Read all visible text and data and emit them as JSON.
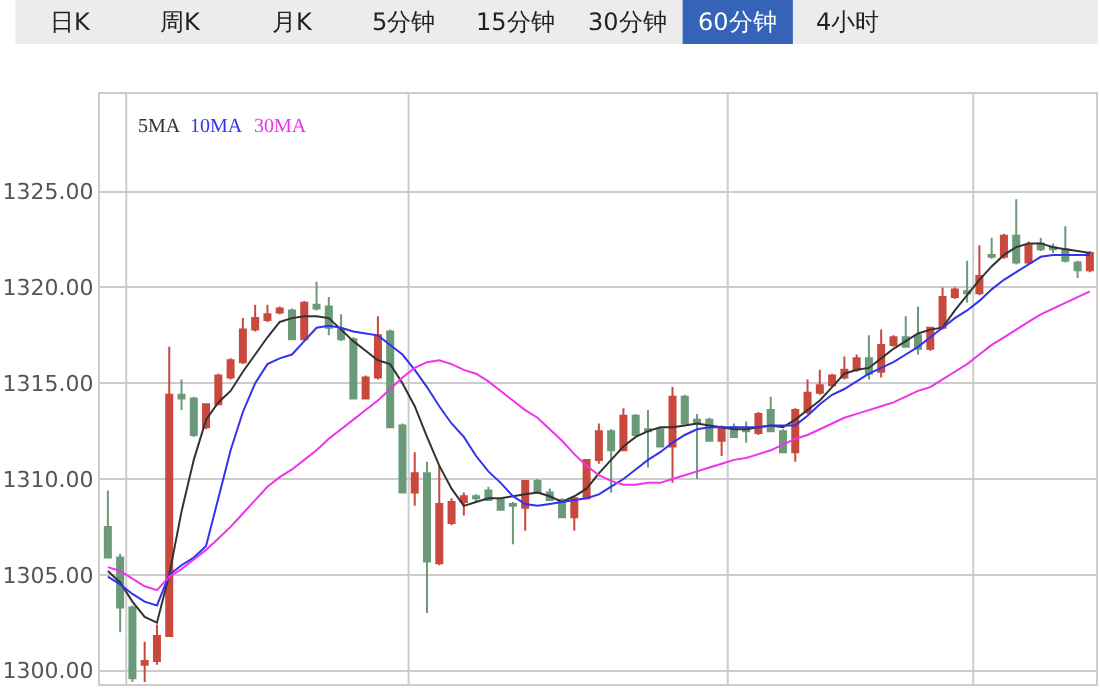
{
  "chart_data": {
    "type": "candlestick",
    "annotations": [
      "日K",
      "周K",
      "月K",
      "5分钟",
      "15分钟",
      "30分钟",
      "60分钟",
      "4小时"
    ],
    "categories": [
      null,
      null,
      null,
      null,
      null,
      null,
      null,
      null,
      null,
      null,
      null,
      null,
      null,
      null,
      null,
      null,
      null,
      null,
      null,
      null,
      null,
      null,
      null,
      null,
      null,
      null,
      null,
      null,
      null,
      null,
      null,
      null,
      null,
      null,
      null,
      null,
      null,
      null,
      null,
      null,
      null,
      null,
      null,
      null,
      null,
      null,
      null,
      null,
      null,
      null,
      null,
      null,
      null,
      null,
      null,
      null,
      null,
      null,
      null,
      null,
      null,
      null,
      null,
      null,
      null,
      null,
      null,
      null,
      null,
      null,
      null,
      null,
      null,
      null,
      null,
      null,
      null,
      null,
      null,
      null,
      null
    ],
    "ohlc": [
      [
        1307.5,
        1309.4,
        1305.9,
        1305.9
      ],
      [
        1305.9,
        1306.1,
        1302.0,
        1303.3
      ],
      [
        1303.3,
        1303.4,
        1299.4,
        1299.6
      ],
      [
        1300.3,
        1301.5,
        1299.4,
        1300.5
      ],
      [
        1300.5,
        1302.4,
        1300.3,
        1301.8
      ],
      [
        1301.8,
        1316.9,
        1301.8,
        1314.4
      ],
      [
        1314.4,
        1315.2,
        1313.6,
        1314.2
      ],
      [
        1314.2,
        1314.3,
        1312.2,
        1312.3
      ],
      [
        1312.7,
        1313.9,
        1312.6,
        1313.9
      ],
      [
        1313.9,
        1315.5,
        1313.9,
        1315.4
      ],
      [
        1315.3,
        1316.3,
        1315.2,
        1316.2
      ],
      [
        1316.1,
        1318.4,
        1316.0,
        1317.8
      ],
      [
        1317.8,
        1319.1,
        1317.7,
        1318.4
      ],
      [
        1318.3,
        1319.1,
        1318.2,
        1318.6
      ],
      [
        1318.7,
        1319.0,
        1318.6,
        1318.9
      ],
      [
        1318.8,
        1318.9,
        1317.3,
        1317.3
      ],
      [
        1317.3,
        1319.3,
        1317.3,
        1319.2
      ],
      [
        1319.1,
        1320.3,
        1318.8,
        1318.9
      ],
      [
        1319.0,
        1319.5,
        1317.5,
        1317.9
      ],
      [
        1317.8,
        1318.6,
        1317.2,
        1317.3
      ],
      [
        1317.3,
        1317.4,
        1314.2,
        1314.2
      ],
      [
        1314.2,
        1315.4,
        1314.2,
        1315.3
      ],
      [
        1315.3,
        1318.5,
        1315.2,
        1317.5
      ],
      [
        1317.7,
        1317.8,
        1312.7,
        1312.7
      ],
      [
        1312.8,
        1312.9,
        1309.3,
        1309.3
      ],
      [
        1309.3,
        1311.4,
        1308.6,
        1310.3
      ],
      [
        1310.3,
        1310.9,
        1303.0,
        1305.7
      ],
      [
        1305.6,
        1310.7,
        1305.5,
        1308.7
      ],
      [
        1307.7,
        1309.0,
        1307.6,
        1308.8
      ],
      [
        1308.8,
        1309.3,
        1308.1,
        1309.1
      ],
      [
        1309.1,
        1309.2,
        1308.8,
        1309.0
      ],
      [
        1309.4,
        1309.6,
        1308.9,
        1308.9
      ],
      [
        1308.9,
        1309.0,
        1308.4,
        1308.4
      ],
      [
        1308.7,
        1308.8,
        1306.6,
        1308.6
      ],
      [
        1308.5,
        1309.9,
        1307.3,
        1309.9
      ],
      [
        1309.9,
        1310.0,
        1309.3,
        1309.3
      ],
      [
        1309.3,
        1309.5,
        1308.9,
        1308.9
      ],
      [
        1308.9,
        1309.0,
        1308.0,
        1308.0
      ],
      [
        1308.0,
        1309.0,
        1307.3,
        1309.0
      ],
      [
        1309.0,
        1311.0,
        1309.0,
        1311.0
      ],
      [
        1311.0,
        1312.9,
        1310.8,
        1312.5
      ],
      [
        1312.5,
        1312.6,
        1309.3,
        1311.5
      ],
      [
        1311.5,
        1313.7,
        1311.5,
        1313.3
      ],
      [
        1313.3,
        1313.4,
        1312.3,
        1312.3
      ],
      [
        1312.6,
        1313.6,
        1310.6,
        1312.5
      ],
      [
        1312.6,
        1312.7,
        1311.7,
        1311.7
      ],
      [
        1311.7,
        1314.8,
        1309.8,
        1314.3
      ],
      [
        1314.3,
        1314.4,
        1312.9,
        1312.9
      ],
      [
        1313.1,
        1313.4,
        1310.0,
        1312.9
      ],
      [
        1313.1,
        1313.2,
        1312.0,
        1312.0
      ],
      [
        1312.0,
        1312.8,
        1311.2,
        1312.7
      ],
      [
        1312.7,
        1312.9,
        1312.2,
        1312.2
      ],
      [
        1312.6,
        1313.0,
        1311.9,
        1312.5
      ],
      [
        1312.4,
        1313.5,
        1312.3,
        1313.4
      ],
      [
        1313.6,
        1314.3,
        1312.5,
        1312.5
      ],
      [
        1312.5,
        1312.6,
        1311.4,
        1311.4
      ],
      [
        1311.4,
        1313.7,
        1310.9,
        1313.6
      ],
      [
        1313.5,
        1315.2,
        1313.4,
        1314.5
      ],
      [
        1314.5,
        1315.7,
        1314.4,
        1314.9
      ],
      [
        1314.9,
        1315.5,
        1314.8,
        1315.4
      ],
      [
        1315.3,
        1316.4,
        1315.2,
        1315.7
      ],
      [
        1315.7,
        1316.5,
        1315.6,
        1316.3
      ],
      [
        1316.3,
        1317.5,
        1315.2,
        1315.5
      ],
      [
        1315.6,
        1317.8,
        1315.3,
        1317.0
      ],
      [
        1317.0,
        1317.5,
        1316.9,
        1317.4
      ],
      [
        1317.4,
        1318.5,
        1316.9,
        1316.9
      ],
      [
        1317.5,
        1319.0,
        1316.5,
        1316.8
      ],
      [
        1316.8,
        1317.9,
        1316.7,
        1317.9
      ],
      [
        1317.9,
        1320.0,
        1317.8,
        1319.5
      ],
      [
        1319.5,
        1320.0,
        1319.4,
        1319.9
      ],
      [
        1319.8,
        1321.4,
        1319.2,
        1319.7
      ],
      [
        1319.7,
        1322.2,
        1319.6,
        1320.6
      ],
      [
        1321.7,
        1322.6,
        1321.5,
        1321.6
      ],
      [
        1321.6,
        1322.8,
        1321.5,
        1322.7
      ],
      [
        1322.7,
        1324.6,
        1321.2,
        1321.3
      ],
      [
        1321.3,
        1322.4,
        1321.2,
        1322.2
      ],
      [
        1322.3,
        1322.6,
        1321.9,
        1322.0
      ],
      [
        1322.1,
        1322.3,
        1321.8,
        1322.0
      ],
      [
        1322.0,
        1323.2,
        1321.3,
        1321.4
      ],
      [
        1321.3,
        1321.4,
        1320.5,
        1320.9
      ],
      [
        1320.9,
        1321.9,
        1320.8,
        1321.8
      ]
    ],
    "series": [
      {
        "name": "5MA",
        "type": "line",
        "color": "#333333",
        "values": [
          1305.2,
          1304.6,
          1303.6,
          1302.8,
          1302.5,
          1305.0,
          1308.3,
          1311.0,
          1313.1,
          1314.0,
          1314.6,
          1315.6,
          1316.5,
          1317.4,
          1318.2,
          1318.4,
          1318.5,
          1318.5,
          1318.4,
          1317.8,
          1317.2,
          1316.7,
          1316.2,
          1316.0,
          1315.0,
          1313.8,
          1312.2,
          1310.7,
          1309.5,
          1308.6,
          1308.8,
          1309.0,
          1309.0,
          1309.1,
          1309.2,
          1309.3,
          1309.1,
          1308.8,
          1309.1,
          1309.5,
          1310.3,
          1311.0,
          1311.7,
          1312.2,
          1312.5,
          1312.7,
          1312.7,
          1312.8,
          1312.9,
          1312.8,
          1312.7,
          1312.6,
          1312.6,
          1312.7,
          1312.8,
          1312.7,
          1313.1,
          1313.6,
          1314.1,
          1314.8,
          1315.5,
          1315.7,
          1315.8,
          1316.3,
          1316.8,
          1317.2,
          1317.6,
          1317.8,
          1317.9,
          1318.8,
          1319.6,
          1320.4,
          1321.1,
          1321.7,
          1322.1,
          1322.3,
          1322.3,
          1322.1,
          1322.0,
          1321.9,
          1321.8
        ]
      },
      {
        "name": "10MA",
        "type": "line",
        "color": "#3333ee",
        "values": [
          1304.9,
          1304.5,
          1304.0,
          1303.6,
          1303.4,
          1305.0,
          1305.5,
          1305.9,
          1306.5,
          1309.0,
          1311.5,
          1313.5,
          1315.0,
          1316.0,
          1316.3,
          1316.5,
          1317.2,
          1317.9,
          1318.0,
          1317.9,
          1317.7,
          1317.6,
          1317.5,
          1317.0,
          1316.5,
          1315.7,
          1314.8,
          1313.8,
          1312.9,
          1312.2,
          1311.2,
          1310.4,
          1309.8,
          1309.1,
          1308.7,
          1308.6,
          1308.7,
          1308.8,
          1308.9,
          1309.0,
          1309.2,
          1309.6,
          1310.0,
          1310.5,
          1311.0,
          1311.4,
          1311.9,
          1312.3,
          1312.6,
          1312.7,
          1312.7,
          1312.7,
          1312.7,
          1312.7,
          1312.8,
          1312.8,
          1312.8,
          1313.3,
          1313.9,
          1314.4,
          1314.7,
          1315.1,
          1315.5,
          1315.8,
          1316.1,
          1316.5,
          1316.9,
          1317.4,
          1317.9,
          1318.4,
          1318.8,
          1319.3,
          1319.9,
          1320.4,
          1320.8,
          1321.2,
          1321.6,
          1321.7,
          1321.7,
          1321.7,
          1321.7
        ]
      },
      {
        "name": "30MA",
        "type": "line",
        "color": "#ee33ee",
        "values": [
          1305.4,
          1305.2,
          1304.8,
          1304.4,
          1304.2,
          1304.9,
          1305.3,
          1305.8,
          1306.3,
          1306.9,
          1307.5,
          1308.2,
          1308.9,
          1309.6,
          1310.1,
          1310.5,
          1311.0,
          1311.5,
          1312.1,
          1312.6,
          1313.1,
          1313.6,
          1314.1,
          1314.7,
          1315.3,
          1315.8,
          1316.1,
          1316.2,
          1316.0,
          1315.7,
          1315.5,
          1315.1,
          1314.6,
          1314.1,
          1313.6,
          1313.2,
          1312.6,
          1312.0,
          1311.3,
          1310.7,
          1310.2,
          1309.9,
          1309.7,
          1309.7,
          1309.8,
          1309.8,
          1310.0,
          1310.2,
          1310.4,
          1310.6,
          1310.8,
          1311.0,
          1311.1,
          1311.3,
          1311.5,
          1311.8,
          1312.1,
          1312.3,
          1312.6,
          1312.9,
          1313.2,
          1313.4,
          1313.6,
          1313.8,
          1314.0,
          1314.3,
          1314.6,
          1314.8,
          1315.2,
          1315.6,
          1316.0,
          1316.5,
          1317.0,
          1317.4,
          1317.8,
          1318.2,
          1318.6,
          1318.9,
          1319.2,
          1319.5,
          1319.8
        ]
      }
    ],
    "ylim": [
      1299.3,
      1330.1
    ],
    "yticks": [
      {
        "value": 1300,
        "label": "1300.00"
      },
      {
        "value": 1305,
        "label": "1305.00"
      },
      {
        "value": 1310,
        "label": "1310.00"
      },
      {
        "value": 1315,
        "label": "1315.00"
      },
      {
        "value": 1320,
        "label": "1320.00"
      },
      {
        "value": 1325,
        "label": "1325.00"
      }
    ],
    "grid": "y",
    "legend": "top left",
    "tick_labels": "y",
    "colors": [
      "#6a9a78",
      "#6a9a78",
      "#6a9a78",
      "#c9493f",
      "#c9493f",
      "#c9493f",
      "#6a9a78",
      "#6a9a78",
      "#c9493f",
      "#c9493f",
      "#c9493f",
      "#c9493f",
      "#c9493f",
      "#c9493f",
      "#c9493f",
      "#6a9a78",
      "#c9493f",
      "#6a9a78",
      "#6a9a78",
      "#6a9a78",
      "#6a9a78",
      "#c9493f",
      "#c9493f",
      "#6a9a78",
      "#6a9a78",
      "#c9493f",
      "#6a9a78",
      "#c9493f",
      "#c9493f",
      "#c9493f",
      "#6a9a78",
      "#6a9a78",
      "#6a9a78",
      "#6a9a78",
      "#c9493f",
      "#6a9a78",
      "#6a9a78",
      "#6a9a78",
      "#c9493f",
      "#c9493f",
      "#c9493f",
      "#6a9a78",
      "#c9493f",
      "#6a9a78",
      "#6a9a78",
      "#6a9a78",
      "#c9493f",
      "#6a9a78",
      "#6a9a78",
      "#6a9a78",
      "#c9493f",
      "#6a9a78",
      "#6a9a78",
      "#c9493f",
      "#6a9a78",
      "#6a9a78",
      "#c9493f",
      "#c9493f",
      "#c9493f",
      "#c9493f",
      "#c9493f",
      "#c9493f",
      "#6a9a78",
      "#c9493f",
      "#c9493f",
      "#6a9a78",
      "#6a9a78",
      "#c9493f",
      "#c9493f",
      "#c9493f",
      "#6a9a78",
      "#c9493f",
      "#6a9a78",
      "#c9493f",
      "#6a9a78",
      "#c9493f",
      "#6a9a78",
      "#6a9a78",
      "#6a9a78",
      "#6a9a78",
      "#c9493f"
    ]
  }
}
